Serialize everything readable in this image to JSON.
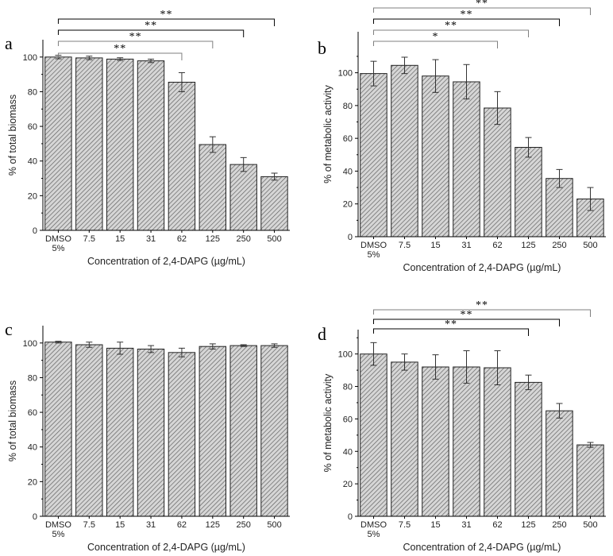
{
  "chart_data": [
    {
      "type": "bar",
      "panel_label": "a",
      "categories": [
        "DMSO\n5%",
        "7.5",
        "15",
        "31",
        "62",
        "125",
        "250",
        "500"
      ],
      "values": [
        100,
        99.5,
        98.8,
        97.8,
        85.5,
        49.5,
        38,
        31
      ],
      "errors": [
        1,
        1,
        0.8,
        1,
        5.5,
        4.5,
        4,
        2
      ],
      "xlabel": "Concentration of 2,4-DAPG (µg/mL)",
      "ylabel": "% of total biomass",
      "ylim": [
        0,
        110
      ],
      "yticks": [
        0,
        20,
        40,
        60,
        80,
        100
      ],
      "significance": [
        {
          "from": 0,
          "to": 4,
          "label": "**",
          "color": "#7f7f7f"
        },
        {
          "from": 0,
          "to": 5,
          "label": "**",
          "color": "#7f7f7f"
        },
        {
          "from": 0,
          "to": 6,
          "label": "**",
          "color": "#000000"
        },
        {
          "from": 0,
          "to": 7,
          "label": "**",
          "color": "#000000"
        }
      ]
    },
    {
      "type": "bar",
      "panel_label": "b",
      "categories": [
        "DMSO\n5%",
        "7.5",
        "15",
        "31",
        "62",
        "125",
        "250",
        "500"
      ],
      "values": [
        99.5,
        104.5,
        98,
        94.5,
        78.5,
        54.5,
        35.5,
        23
      ],
      "errors": [
        7.5,
        5,
        10,
        10.5,
        10,
        6,
        5.5,
        7
      ],
      "xlabel": "Concentration of 2,4-DAPG (µg/mL)",
      "ylabel": "% of metabolic activity",
      "ylim": [
        0,
        125
      ],
      "yticks": [
        0,
        20,
        40,
        60,
        80,
        100
      ],
      "significance": [
        {
          "from": 0,
          "to": 4,
          "label": "*",
          "color": "#7f7f7f"
        },
        {
          "from": 0,
          "to": 5,
          "label": "**",
          "color": "#7f7f7f"
        },
        {
          "from": 0,
          "to": 6,
          "label": "**",
          "color": "#000000"
        },
        {
          "from": 0,
          "to": 7,
          "label": "**",
          "color": "#7f7f7f"
        }
      ]
    },
    {
      "type": "bar",
      "panel_label": "c",
      "categories": [
        "DMSO\n5%",
        "7.5",
        "15",
        "31",
        "62",
        "125",
        "250",
        "500"
      ],
      "values": [
        100.5,
        99,
        97,
        96.5,
        94.5,
        98,
        98.5,
        98.5
      ],
      "errors": [
        0.5,
        1.5,
        3.5,
        2,
        2.5,
        1.5,
        0.5,
        1
      ],
      "xlabel": "Concentration of 2,4-DAPG (µg/mL)",
      "ylabel": "% of total biomass",
      "ylim": [
        0,
        110
      ],
      "yticks": [
        0,
        20,
        40,
        60,
        80,
        100
      ],
      "significance": []
    },
    {
      "type": "bar",
      "panel_label": "d",
      "categories": [
        "DMSO\n5%",
        "7.5",
        "15",
        "31",
        "62",
        "125",
        "250",
        "500"
      ],
      "values": [
        100,
        95,
        92,
        92,
        91.5,
        82.5,
        65,
        44
      ],
      "errors": [
        7,
        5,
        7.5,
        10,
        10.5,
        4.5,
        4.5,
        1.5
      ],
      "xlabel": "Concentration of 2,4-DAPG (µg/mL)",
      "ylabel": "% of metabolic activity",
      "ylim": [
        0,
        115
      ],
      "yticks": [
        0,
        20,
        40,
        60,
        80,
        100
      ],
      "significance": [
        {
          "from": 0,
          "to": 5,
          "label": "**",
          "color": "#000000"
        },
        {
          "from": 0,
          "to": 6,
          "label": "**",
          "color": "#000000"
        },
        {
          "from": 0,
          "to": 7,
          "label": "**",
          "color": "#7f7f7f"
        }
      ]
    }
  ]
}
